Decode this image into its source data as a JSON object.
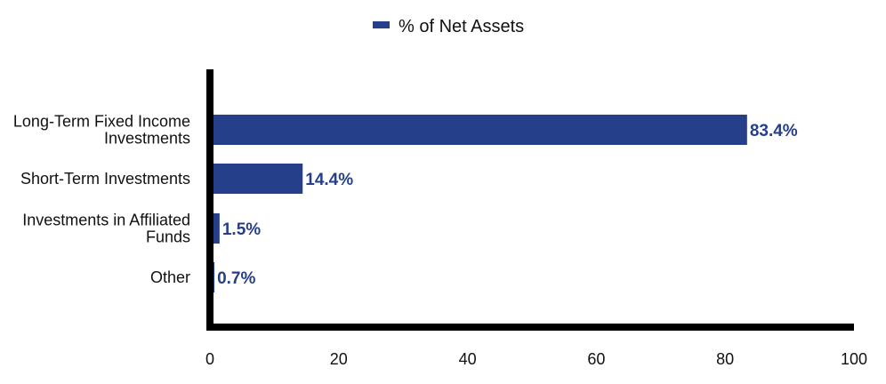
{
  "chart_data": {
    "type": "bar",
    "orientation": "horizontal",
    "title": "",
    "xlabel": "",
    "ylabel": "",
    "categories": [
      [
        "Long-Term Fixed Income",
        "Investments"
      ],
      [
        "Short-Term Investments"
      ],
      [
        "Investments in Affiliated",
        "Funds"
      ],
      [
        "Other"
      ]
    ],
    "series": [
      {
        "name": "% of Net Assets",
        "values": [
          83.4,
          14.4,
          1.5,
          0.7
        ],
        "data_labels": [
          "83.4%",
          "14.4%",
          "1.5%",
          "0.7%"
        ],
        "color": "#253f8b"
      }
    ],
    "xlim": [
      0,
      100
    ],
    "xticks": [
      "0",
      "20",
      "40",
      "60",
      "80",
      "100"
    ],
    "legend": {
      "position": "top-center",
      "entries": [
        "% of Net Assets"
      ]
    },
    "grid": false,
    "axis_color": "#000000"
  }
}
